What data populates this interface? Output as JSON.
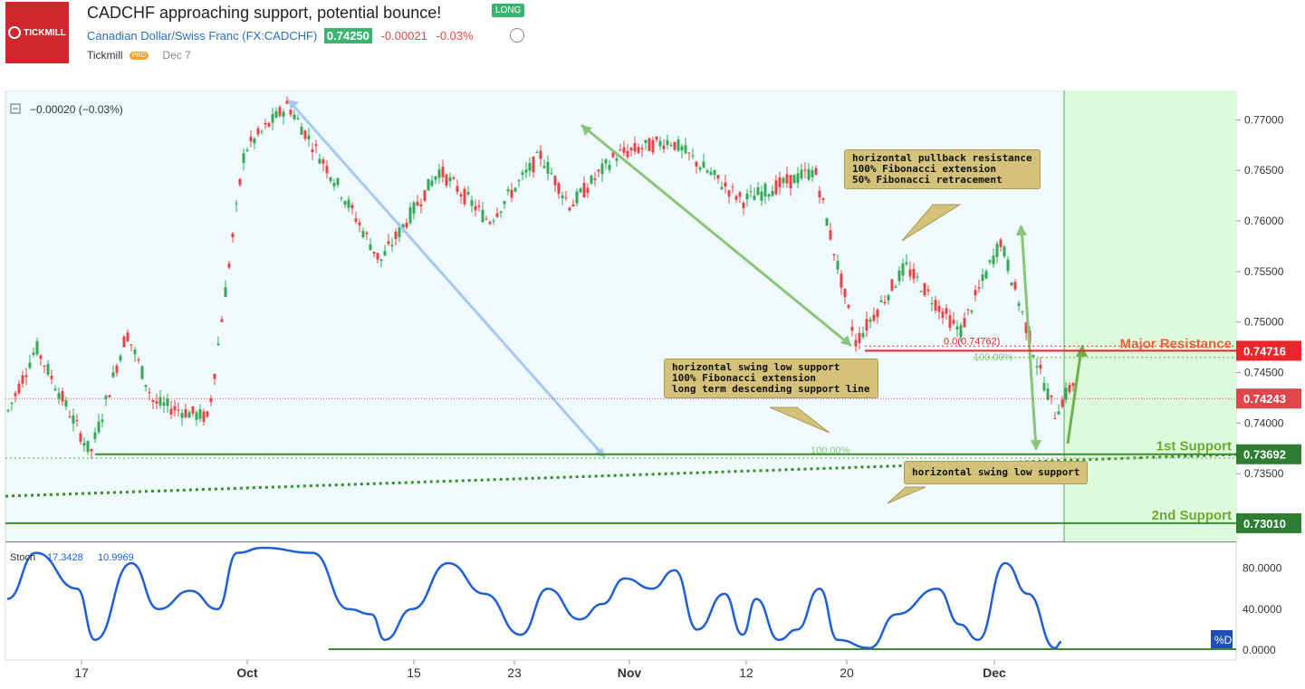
{
  "header": {
    "logo_text": "TICKMILL",
    "title": "CADCHF approaching support, potential bounce!",
    "badge": "LONG",
    "symbol_name": "Canadian Dollar/Swiss Franc",
    "symbol_code": "(FX:CADCHF)",
    "last_price": "0.74250",
    "change": "-0.00021",
    "change_pct": "-0.03%",
    "author": "Tickmill",
    "author_badge": "PRO",
    "date": "Dec 7"
  },
  "main_pane": {
    "legend": "−0.00020 (−0.03%)",
    "price_ticks": [
      "0.77000",
      "0.76500",
      "0.76000",
      "0.75500",
      "0.75000",
      "0.74500",
      "0.74000",
      "0.73500"
    ],
    "price_tick_values": [
      0.77,
      0.765,
      0.76,
      0.755,
      0.75,
      0.745,
      0.74,
      0.735
    ],
    "ylim": [
      0.7283,
      0.7729
    ]
  },
  "levels": {
    "major_resistance_label": "Major Resistance",
    "major_resistance_value": "0.74716",
    "current_value": "0.74243",
    "first_support_label": "1st Support",
    "first_support_value": "0.73692",
    "second_support_label": "2nd Support",
    "second_support_value": "0.73010",
    "fib_resistance_label": "0.0(0.74762)",
    "fib_resistance_pct": "100.00%",
    "fib_support_pct": "100.00%"
  },
  "annotations": {
    "resistance_note": "horizontal pullback resistance\n100% Fibonacci extension\n50% Fibonacci retracement",
    "support_note": "horizontal swing low support\n100% Fibonacci extension\nlong term descending support line",
    "second_support_note": "horizontal swing low support"
  },
  "stoch_pane": {
    "label": "Stoch",
    "k_value": "17.3428",
    "d_value": "10.9969",
    "ticks": [
      "80.0000",
      "40.0000",
      "0.0000"
    ],
    "tick_values": [
      80,
      40,
      0
    ],
    "d_badge": "%D"
  },
  "x_axis": {
    "labels": [
      "17",
      "Oct",
      "15",
      "23",
      "Nov",
      "12",
      "20",
      "Dec"
    ]
  },
  "colors": {
    "up": "#3ba55c",
    "down": "#e0474c",
    "support_line": "#3f8a2e",
    "resistance_line": "#e8262b",
    "stoch_line": "#1f5fd6",
    "projection_zone": "#dcfadc",
    "chart_bg": "#eefafc"
  },
  "chart_data": {
    "type": "line",
    "title": "CADCHF approaching support, potential bounce!",
    "xlabel": "",
    "ylabel": "",
    "x": [
      "17",
      "Oct",
      "15",
      "23",
      "Nov",
      "12",
      "20",
      "Dec"
    ],
    "series": [
      {
        "name": "CADCHF",
        "x": [
          "17",
          "Oct",
          "15",
          "23",
          "Nov",
          "12",
          "20",
          "Dec"
        ],
        "values": [
          0.7378,
          0.7675,
          0.7565,
          0.7595,
          0.766,
          0.763,
          0.748,
          0.743
        ]
      },
      {
        "name": "Stoch %D",
        "x": [
          "17",
          "Oct",
          "15",
          "23",
          "Nov",
          "12",
          "20",
          "Dec"
        ],
        "values": [
          12,
          95,
          12,
          35,
          70,
          20,
          5,
          10
        ]
      }
    ],
    "ylim": [
      0.7283,
      0.7729
    ],
    "horizontal_levels": [
      0.74716,
      0.73692,
      0.7301
    ],
    "current_price": 0.74243,
    "grid": false
  }
}
